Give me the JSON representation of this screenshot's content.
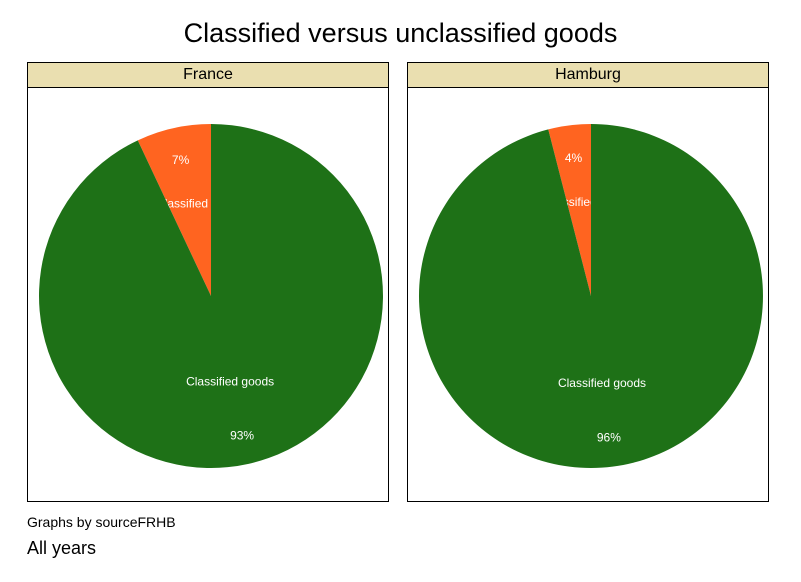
{
  "chart_data": {
    "type": "pie",
    "title": "Classified versus unclassified goods",
    "categories": [
      "Not classified goods",
      "Classified goods"
    ],
    "colors": [
      "#ff6420",
      "#1e7117"
    ],
    "series": [
      {
        "name": "France",
        "values": [
          7,
          93
        ],
        "labels": [
          "7%",
          "93%"
        ]
      },
      {
        "name": "Hamburg",
        "values": [
          4,
          96
        ],
        "labels": [
          "4%",
          "96%"
        ]
      }
    ],
    "legend": "none"
  },
  "note": "Graphs by sourceFRHB",
  "subtitle": "All years"
}
